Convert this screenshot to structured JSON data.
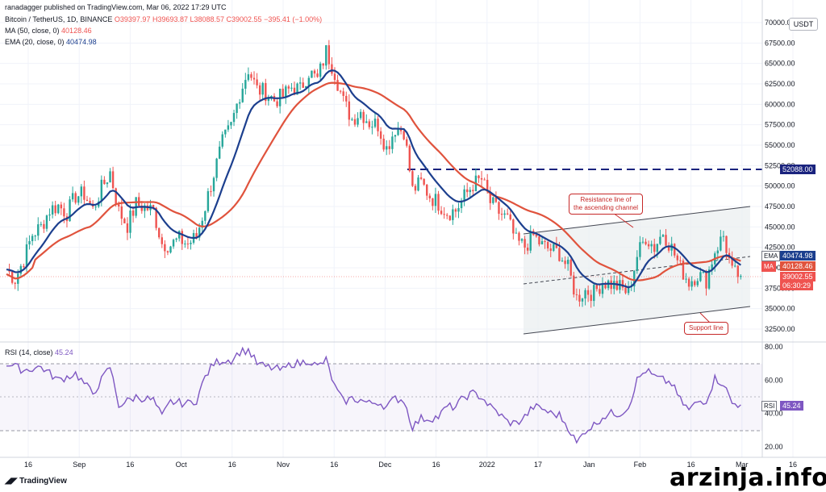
{
  "header": {
    "published": "ranadagger published on TradingView.com, Mar 06, 2022 17:29 UTC",
    "symbol": "Bitcoin / TetherUS, 1D, BINANCE",
    "ohlc": "O39397.97 H39693.87 L38088.57 C39002.55 −395.41 (−1.00%)",
    "ma_label": "MA (50, close, 0)",
    "ma_value": "40128.46",
    "ema_label": "EMA (20, close, 0)",
    "ema_value": "40474.98",
    "rsi_label": "RSI (14, close)",
    "rsi_value": "45.24"
  },
  "currency": "USDT",
  "price_axis": [
    "70000.00",
    "67500.00",
    "65000.00",
    "62500.00",
    "60000.00",
    "57500.00",
    "55000.00",
    "52500.00",
    "50000.00",
    "47500.00",
    "45000.00",
    "42500.00",
    "40000.00",
    "37500.00",
    "35000.00",
    "32500.00"
  ],
  "rsi_axis": [
    "80.00",
    "60.00",
    "40.00",
    "20.00"
  ],
  "time_axis": [
    "16",
    "Sep",
    "16",
    "Oct",
    "16",
    "Nov",
    "16",
    "Dec",
    "16",
    "2022",
    "17",
    "Jan",
    "Feb",
    "16",
    "Mar",
    "16"
  ],
  "tags": {
    "level": "52088.00",
    "ema_name": "EMA",
    "ema": "40474.98",
    "ma_name": "MA",
    "ma": "40128.46",
    "price": "39002.55",
    "countdown": "06:30:29",
    "rsi_name": "RSI",
    "rsi": "45.24"
  },
  "annotations": {
    "resistance": [
      "Resistance line of",
      "the ascending channel"
    ],
    "support": "Support line"
  },
  "branding": {
    "logo": "TradingView",
    "watermark": "arzinja.info"
  },
  "colors": {
    "up": "#26a69a",
    "down": "#ef5350",
    "ma": "#e0533d",
    "ema": "#1c3f8e",
    "rsi": "#7e57c2",
    "level": "#1a237e"
  },
  "chart_data": {
    "type": "candlestick",
    "symbol": "BTC/USDT",
    "timeframe": "1D",
    "ylim": [
      31000,
      71000
    ],
    "key_level": 52088,
    "x_range": [
      "2021-07-29",
      "2022-03-21"
    ],
    "close": [
      [
        0,
        39800
      ],
      [
        3,
        38600
      ],
      [
        6,
        41000
      ],
      [
        9,
        44100
      ],
      [
        12,
        45000
      ],
      [
        15,
        47100
      ],
      [
        18,
        47600
      ],
      [
        21,
        46700
      ],
      [
        24,
        48800
      ],
      [
        27,
        49000
      ],
      [
        30,
        47100
      ],
      [
        33,
        49700
      ],
      [
        36,
        51700
      ],
      [
        39,
        46900
      ],
      [
        42,
        45200
      ],
      [
        45,
        47800
      ],
      [
        48,
        47400
      ],
      [
        51,
        47000
      ],
      [
        54,
        43000
      ],
      [
        57,
        42800
      ],
      [
        60,
        43500
      ],
      [
        63,
        42900
      ],
      [
        66,
        43800
      ],
      [
        69,
        47500
      ],
      [
        72,
        51500
      ],
      [
        75,
        55300
      ],
      [
        78,
        57300
      ],
      [
        81,
        61300
      ],
      [
        84,
        64300
      ],
      [
        87,
        61800
      ],
      [
        90,
        61500
      ],
      [
        93,
        60500
      ],
      [
        96,
        61000
      ],
      [
        99,
        62100
      ],
      [
        102,
        61800
      ],
      [
        105,
        64000
      ],
      [
        108,
        63000
      ],
      [
        111,
        66500
      ],
      [
        114,
        63900
      ],
      [
        117,
        60300
      ],
      [
        120,
        58200
      ],
      [
        123,
        59100
      ],
      [
        126,
        57800
      ],
      [
        129,
        57500
      ],
      [
        132,
        54600
      ],
      [
        135,
        57100
      ],
      [
        138,
        56800
      ],
      [
        141,
        49500
      ],
      [
        144,
        50400
      ],
      [
        147,
        48800
      ],
      [
        150,
        47900
      ],
      [
        153,
        46800
      ],
      [
        156,
        47000
      ],
      [
        159,
        48700
      ],
      [
        162,
        50200
      ],
      [
        165,
        50800
      ],
      [
        168,
        48000
      ],
      [
        171,
        46800
      ],
      [
        174,
        45900
      ],
      [
        177,
        43200
      ],
      [
        180,
        42600
      ],
      [
        183,
        43900
      ],
      [
        186,
        42700
      ],
      [
        189,
        42200
      ],
      [
        192,
        41800
      ],
      [
        195,
        39900
      ],
      [
        198,
        36300
      ],
      [
        201,
        37200
      ],
      [
        204,
        36900
      ],
      [
        207,
        38300
      ],
      [
        210,
        38000
      ],
      [
        213,
        37600
      ],
      [
        216,
        36900
      ],
      [
        219,
        41500
      ],
      [
        222,
        43800
      ],
      [
        225,
        42500
      ],
      [
        228,
        44400
      ],
      [
        231,
        42400
      ],
      [
        234,
        40000
      ],
      [
        237,
        38300
      ],
      [
        240,
        39200
      ],
      [
        243,
        38500
      ],
      [
        246,
        42100
      ],
      [
        249,
        43900
      ],
      [
        252,
        39400
      ],
      [
        255,
        39000
      ]
    ],
    "ma50_last": 40128.46,
    "ema20_last": 40474.98,
    "last_close": 39002.55,
    "rsi": [
      [
        0,
        70
      ],
      [
        6,
        66
      ],
      [
        12,
        68
      ],
      [
        18,
        60
      ],
      [
        24,
        64
      ],
      [
        30,
        52
      ],
      [
        36,
        68
      ],
      [
        39,
        45
      ],
      [
        45,
        50
      ],
      [
        51,
        48
      ],
      [
        54,
        38
      ],
      [
        57,
        47
      ],
      [
        63,
        46
      ],
      [
        66,
        48
      ],
      [
        69,
        62
      ],
      [
        72,
        70
      ],
      [
        75,
        72
      ],
      [
        78,
        72
      ],
      [
        81,
        77
      ],
      [
        84,
        78
      ],
      [
        87,
        70
      ],
      [
        90,
        68
      ],
      [
        93,
        67
      ],
      [
        96,
        66
      ],
      [
        99,
        70
      ],
      [
        102,
        70
      ],
      [
        105,
        72
      ],
      [
        108,
        68
      ],
      [
        111,
        72
      ],
      [
        114,
        56
      ],
      [
        117,
        47
      ],
      [
        120,
        49
      ],
      [
        123,
        48
      ],
      [
        126,
        46
      ],
      [
        129,
        47
      ],
      [
        132,
        44
      ],
      [
        135,
        49
      ],
      [
        138,
        48
      ],
      [
        141,
        32
      ],
      [
        144,
        37
      ],
      [
        147,
        37
      ],
      [
        150,
        38
      ],
      [
        153,
        44
      ],
      [
        156,
        44
      ],
      [
        159,
        50
      ],
      [
        162,
        52
      ],
      [
        165,
        50
      ],
      [
        168,
        44
      ],
      [
        171,
        40
      ],
      [
        174,
        35
      ],
      [
        177,
        34
      ],
      [
        180,
        38
      ],
      [
        183,
        44
      ],
      [
        186,
        43
      ],
      [
        189,
        40
      ],
      [
        192,
        39
      ],
      [
        195,
        32
      ],
      [
        198,
        22
      ],
      [
        201,
        30
      ],
      [
        204,
        33
      ],
      [
        207,
        38
      ],
      [
        210,
        40
      ],
      [
        213,
        40
      ],
      [
        216,
        44
      ],
      [
        219,
        60
      ],
      [
        222,
        66
      ],
      [
        225,
        62
      ],
      [
        228,
        60
      ],
      [
        231,
        58
      ],
      [
        234,
        48
      ],
      [
        237,
        42
      ],
      [
        240,
        47
      ],
      [
        243,
        48
      ],
      [
        246,
        61
      ],
      [
        249,
        58
      ],
      [
        252,
        46
      ],
      [
        255,
        45.24
      ]
    ]
  }
}
